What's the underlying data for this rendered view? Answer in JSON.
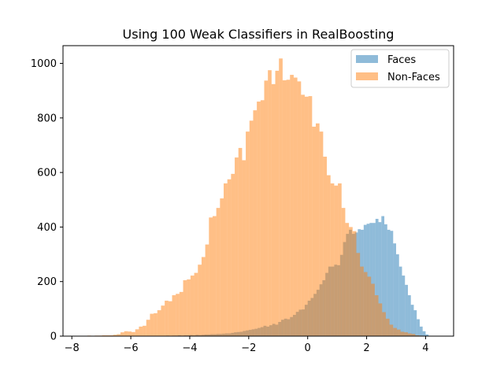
{
  "chart_data": {
    "type": "histogram",
    "title": "Using 100 Weak Classifiers in RealBoosting",
    "xlabel": "",
    "ylabel": "",
    "xlim": [
      -8.3,
      4.95
    ],
    "ylim": [
      0,
      1065
    ],
    "x_ticks": [
      -8,
      -6,
      -4,
      -2,
      0,
      2,
      4
    ],
    "x_tick_labels": [
      "−8",
      "−6",
      "−4",
      "−2",
      "0",
      "2",
      "4"
    ],
    "y_ticks": [
      0,
      200,
      400,
      600,
      800,
      1000
    ],
    "y_tick_labels": [
      "0",
      "200",
      "400",
      "600",
      "800",
      "1000"
    ],
    "grid": false,
    "legend_position": "top-right",
    "series": [
      {
        "name": "Faces",
        "color": "#1f77b4",
        "opacity": 0.5,
        "bin_start": -5.2,
        "bin_width": 0.1,
        "counts": [
          1,
          0,
          1,
          1,
          2,
          1,
          2,
          2,
          3,
          2,
          3,
          3,
          4,
          3,
          5,
          4,
          5,
          6,
          6,
          7,
          7,
          8,
          8,
          9,
          10,
          10,
          12,
          14,
          15,
          16,
          19,
          21,
          23,
          25,
          27,
          30,
          33,
          38,
          35,
          40,
          45,
          42,
          52,
          60,
          64,
          62,
          70,
          78,
          89,
          97,
          98,
          115,
          130,
          140,
          155,
          170,
          190,
          205,
          232,
          255,
          255,
          262,
          260,
          298,
          345,
          375,
          390,
          375,
          380,
          392,
          390,
          408,
          412,
          415,
          415,
          430,
          418,
          440,
          410,
          390,
          386,
          340,
          300,
          255,
          222,
          188,
          150,
          115,
          95,
          62,
          35,
          18,
          6
        ]
      },
      {
        "name": "Non-Faces",
        "color": "#ff7f0e",
        "opacity": 0.5,
        "bin_start": -7.6,
        "bin_width": 0.125,
        "counts": [
          1,
          2,
          1,
          2,
          2,
          3,
          3,
          3,
          5,
          7,
          14,
          18,
          17,
          15,
          25,
          35,
          38,
          60,
          82,
          84,
          95,
          112,
          130,
          128,
          150,
          155,
          162,
          205,
          208,
          222,
          232,
          262,
          290,
          336,
          435,
          440,
          470,
          505,
          560,
          575,
          595,
          655,
          690,
          645,
          750,
          790,
          828,
          860,
          865,
          937,
          975,
          924,
          973,
          1018,
          938,
          940,
          958,
          948,
          934,
          885,
          878,
          880,
          768,
          780,
          750,
          658,
          590,
          560,
          552,
          560,
          470,
          415,
          400,
          385,
          305,
          255,
          235,
          218,
          192,
          150,
          120,
          88,
          64,
          42,
          30,
          24,
          16,
          14,
          10,
          8,
          3,
          2,
          1,
          1,
          1
        ]
      }
    ]
  }
}
